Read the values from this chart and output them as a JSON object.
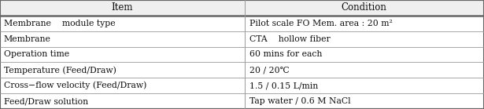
{
  "header": [
    "Item",
    "Condition"
  ],
  "rows": [
    [
      "Membrane    module type",
      "Pilot scale FO Mem. area : 20 m²"
    ],
    [
      "Membrane",
      "CTA    hollow fiber"
    ],
    [
      "Operation time",
      "60 mins for each"
    ],
    [
      "Temperature (Feed/Draw)",
      "20 / 20℃"
    ],
    [
      "Cross−flow velocity (Feed/Draw)",
      "1.5 / 0.15 L/min"
    ],
    [
      "Feed/Draw solution",
      "Tap water / 0.6 M NaCl"
    ]
  ],
  "col_split": 0.505,
  "background_header": "#efefef",
  "background_row": "#ffffff",
  "border_color": "#999999",
  "border_color_thick": "#666666",
  "text_color": "#111111",
  "header_fontsize": 8.5,
  "row_fontsize": 7.8,
  "fig_width": 6.15,
  "fig_height": 1.39,
  "dpi": 100
}
